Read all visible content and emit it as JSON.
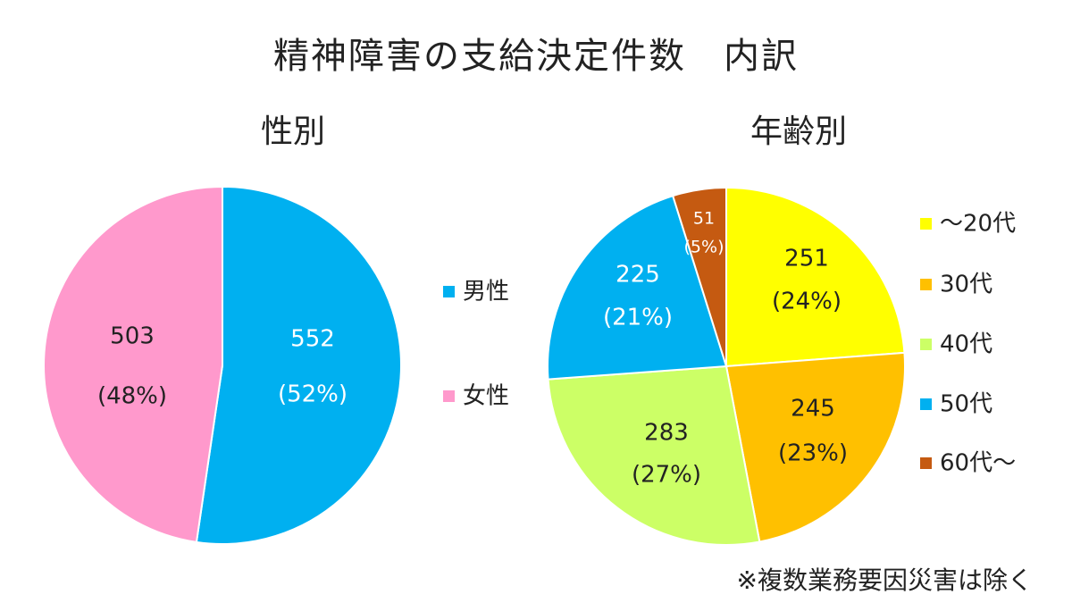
{
  "title": "精神障害の支給決定件数　内訳",
  "footnote": "※複数業務要因災害は除く",
  "colors": {
    "male": "#00B0F0",
    "female": "#FF99CC",
    "age_20": "#FFFF00",
    "age_30": "#FFC000",
    "age_40": "#CCFF66",
    "age_50": "#00B0F0",
    "age_60": "#C55A11"
  },
  "chart_data": [
    {
      "type": "pie",
      "title": "性別",
      "slices": [
        {
          "label": "男性",
          "value": 552,
          "percent": "(52%)",
          "color": "#00B0F0",
          "text_color": "#ffffff"
        },
        {
          "label": "女性",
          "value": 503,
          "percent": "(48%)",
          "color": "#FF99CC",
          "text_color": "#222222"
        }
      ],
      "start": "12 o'clock",
      "direction": "clockwise"
    },
    {
      "type": "pie",
      "title": "年齢別",
      "slices": [
        {
          "label": "～20代",
          "value": 251,
          "percent": "(24%)",
          "color": "#FFFF00",
          "text_color": "#222222"
        },
        {
          "label": "30代",
          "value": 245,
          "percent": "(23%)",
          "color": "#FFC000",
          "text_color": "#222222"
        },
        {
          "label": "40代",
          "value": 283,
          "percent": "(27%)",
          "color": "#CCFF66",
          "text_color": "#222222"
        },
        {
          "label": "50代",
          "value": 225,
          "percent": "(21%)",
          "color": "#00B0F0",
          "text_color": "#ffffff"
        },
        {
          "label": "60代～",
          "value": 51,
          "percent": "(5%)",
          "color": "#C55A11",
          "text_color": "#ffffff"
        }
      ],
      "start": "12 o'clock",
      "direction": "clockwise"
    }
  ]
}
